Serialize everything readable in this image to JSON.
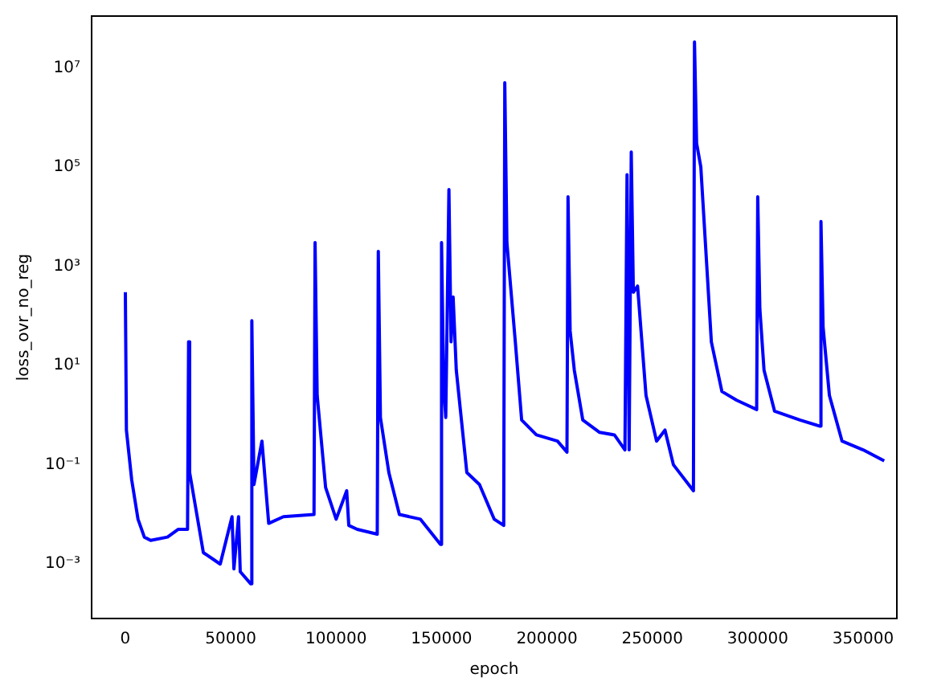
{
  "chart_data": {
    "type": "line",
    "xlabel": "epoch",
    "ylabel": "loss_ovr_no_reg",
    "log": "y",
    "grid": false,
    "legend": false,
    "marker": "none",
    "line_style": "solid",
    "xlim": [
      -16000,
      366000
    ],
    "xticks": [
      0,
      50000,
      100000,
      150000,
      200000,
      250000,
      300000,
      350000
    ],
    "ylim": [
      8e-05,
      110000000
    ],
    "yticks": [
      {
        "value": 0.001,
        "label": "10⁻³"
      },
      {
        "value": 0.1,
        "label": "10⁻¹"
      },
      {
        "value": 10,
        "label": "10¹"
      },
      {
        "value": 1000,
        "label": "10³"
      },
      {
        "value": 100000,
        "label": "10⁵"
      },
      {
        "value": 10000000,
        "label": "10⁷"
      }
    ],
    "series": [
      {
        "color": "#0000ff",
        "x": [
          0,
          500,
          3000,
          6000,
          9000,
          12000,
          20000,
          25000,
          29500,
          30000,
          30500,
          37000,
          45000,
          50600,
          51500,
          53700,
          54500,
          59500,
          60000,
          61000,
          64800,
          68000,
          75000,
          89500,
          90000,
          91000,
          95000,
          100000,
          105000,
          106000,
          110000,
          119500,
          120000,
          121000,
          125000,
          130000,
          140000,
          149500,
          150000,
          151000,
          152000,
          153500,
          154500,
          155500,
          157000,
          162000,
          168000,
          175000,
          179500,
          180000,
          181000,
          185000,
          188000,
          195000,
          205000,
          209500,
          210000,
          211000,
          213000,
          217000,
          225000,
          232000,
          237000,
          238000,
          239000,
          240000,
          241000,
          243000,
          247000,
          252000,
          256000,
          260000,
          269500,
          270000,
          271000,
          273000,
          278000,
          283000,
          290000,
          299500,
          300000,
          301000,
          303000,
          308000,
          320000,
          329500,
          330000,
          331000,
          334000,
          340000,
          350000,
          360000
        ],
        "values": [
          300,
          0.5,
          0.05,
          0.008,
          0.0035,
          0.003,
          0.0035,
          0.005,
          0.005,
          30,
          0.07,
          0.0017,
          0.001,
          0.009,
          0.0008,
          0.009,
          0.0007,
          0.0004,
          80,
          0.04,
          0.3,
          0.0066,
          0.009,
          0.01,
          3000,
          2.5,
          0.035,
          0.008,
          0.03,
          0.006,
          0.005,
          0.004,
          2000,
          0.9,
          0.07,
          0.01,
          0.008,
          0.0025,
          3000,
          4,
          0.9,
          35000,
          30,
          240,
          8,
          0.07,
          0.04,
          0.008,
          0.006,
          5000000,
          3000,
          30,
          0.8,
          0.4,
          0.3,
          0.18,
          25000,
          50,
          8,
          0.8,
          0.45,
          0.4,
          0.2,
          70000,
          0.2,
          200000,
          300,
          400,
          2.5,
          0.3,
          0.5,
          0.1,
          0.03,
          33000000,
          300000,
          100000,
          30,
          3,
          2,
          1.3,
          25000,
          140,
          8,
          1.2,
          0.8,
          0.6,
          8000,
          60,
          2.5,
          0.3,
          0.2,
          0.12
        ]
      }
    ]
  }
}
